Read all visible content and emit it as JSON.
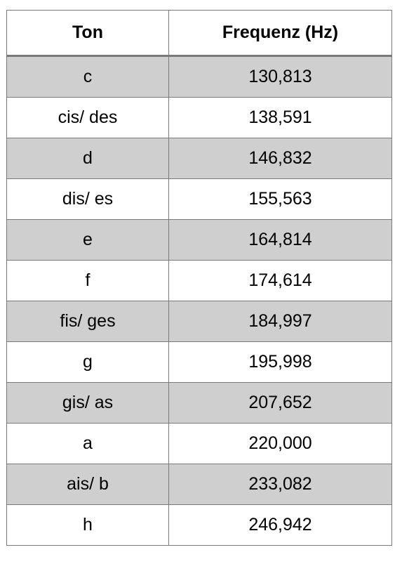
{
  "table": {
    "headers": [
      "Ton",
      "Frequenz (Hz)"
    ],
    "rows": [
      [
        "c",
        "130,813"
      ],
      [
        "cis/ des",
        "138,591"
      ],
      [
        "d",
        "146,832"
      ],
      [
        "dis/ es",
        "155,563"
      ],
      [
        "e",
        "164,814"
      ],
      [
        "f",
        "174,614"
      ],
      [
        "fis/ ges",
        "184,997"
      ],
      [
        "g",
        "195,998"
      ],
      [
        "gis/ as",
        "207,652"
      ],
      [
        "a",
        "220,000"
      ],
      [
        "ais/ b",
        "233,082"
      ],
      [
        "h",
        "246,942"
      ]
    ],
    "colors": {
      "shaded_row": "#cfcfcf",
      "plain_row": "#ffffff",
      "border": "#7a7a7a"
    }
  }
}
